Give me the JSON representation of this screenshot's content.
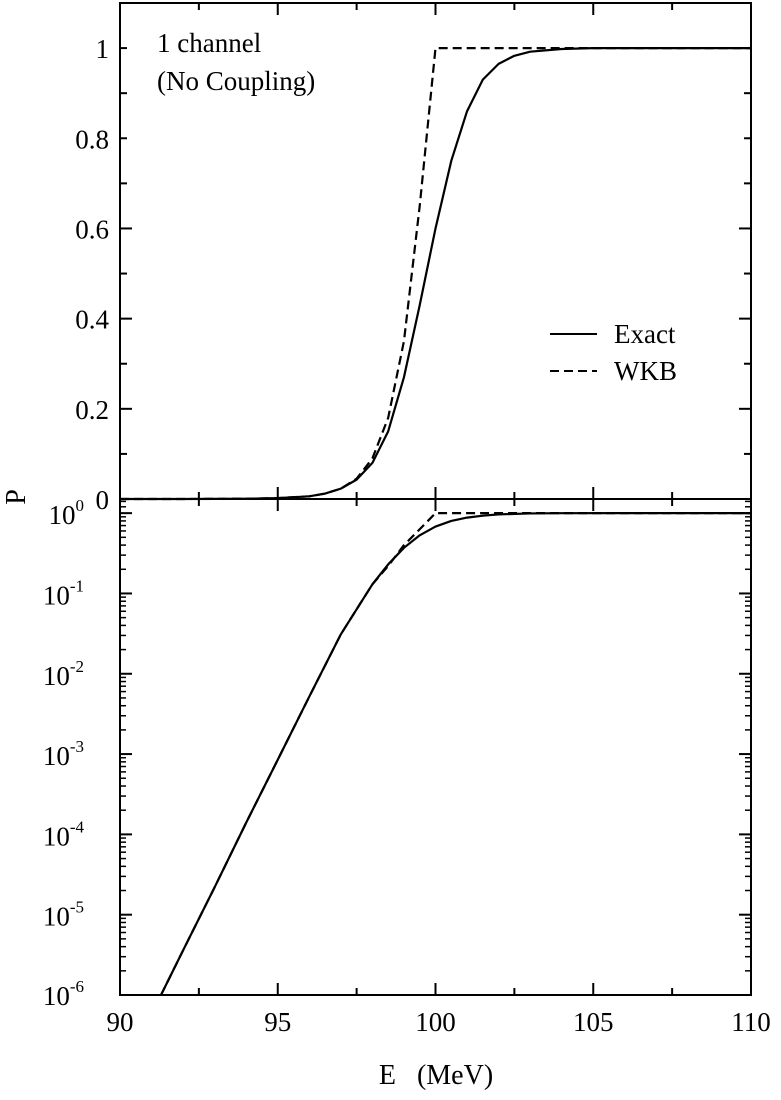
{
  "chart_data": [
    {
      "type": "line",
      "panel": "top",
      "scale": "linear",
      "annotation": [
        "1 channel",
        "(No Coupling)"
      ],
      "xlim": [
        90,
        110
      ],
      "ylim": [
        0,
        1.1
      ],
      "yticks": [
        0,
        0.2,
        0.4,
        0.6,
        0.8,
        1
      ],
      "ytick_labels": [
        "0",
        "0.2",
        "0.4",
        "0.6",
        "0.8",
        "1"
      ],
      "legend": {
        "placement": "right-middle",
        "entries": [
          "Exact",
          "WKB"
        ]
      },
      "grid": false,
      "series": [
        {
          "name": "Exact",
          "style": "solid",
          "x": [
            90,
            92,
            94,
            95,
            96,
            96.5,
            97,
            97.5,
            98,
            98.5,
            99,
            99.5,
            100,
            100.5,
            101,
            101.5,
            102,
            102.5,
            103,
            104,
            105,
            106,
            108,
            110
          ],
          "y": [
            2e-06,
            4e-05,
            0.0006,
            0.002,
            0.006,
            0.012,
            0.023,
            0.043,
            0.08,
            0.15,
            0.27,
            0.43,
            0.6,
            0.75,
            0.86,
            0.93,
            0.965,
            0.983,
            0.992,
            0.998,
            1.0,
            1.0,
            1.0,
            1.0
          ]
        },
        {
          "name": "WKB",
          "style": "dashed",
          "x": [
            90,
            92,
            94,
            95,
            96,
            96.5,
            97,
            97.5,
            98,
            98.5,
            99,
            99.5,
            100,
            100.01,
            102,
            105,
            110
          ],
          "y": [
            2e-06,
            4e-05,
            0.0006,
            0.002,
            0.006,
            0.012,
            0.023,
            0.045,
            0.09,
            0.18,
            0.35,
            0.65,
            1.0,
            1.0,
            1.0,
            1.0,
            1.0
          ]
        }
      ]
    },
    {
      "type": "line",
      "panel": "bottom",
      "scale": "log",
      "xlabel": "E   (MeV)",
      "ylabel": "P",
      "xlim": [
        90,
        110
      ],
      "ylim": [
        1e-06,
        1.5
      ],
      "xtick_labels": [
        "90",
        "95",
        "100",
        "105",
        "110"
      ],
      "ytick_labels": [
        {
          "base": "10",
          "exp": "0"
        },
        {
          "base": "10",
          "exp": "-1"
        },
        {
          "base": "10",
          "exp": "-2"
        },
        {
          "base": "10",
          "exp": "-3"
        },
        {
          "base": "10",
          "exp": "-4"
        },
        {
          "base": "10",
          "exp": "-5"
        },
        {
          "base": "10",
          "exp": "-6"
        }
      ],
      "grid": false,
      "series": [
        {
          "name": "Exact",
          "style": "solid",
          "x": [
            91.3,
            92,
            93,
            94,
            95,
            96,
            97,
            98,
            98.5,
            99,
            99.5,
            100,
            100.5,
            101,
            101.5,
            102,
            103,
            104,
            106,
            110
          ],
          "y": [
            1e-06,
            3.6e-06,
            2.2e-05,
            0.00014,
            0.00085,
            0.0052,
            0.031,
            0.13,
            0.23,
            0.37,
            0.53,
            0.68,
            0.8,
            0.88,
            0.93,
            0.965,
            0.992,
            0.998,
            1.0,
            1.0
          ]
        },
        {
          "name": "WKB",
          "style": "dashed",
          "x": [
            91.3,
            92,
            93,
            94,
            95,
            96,
            97,
            98,
            98.5,
            99,
            99.5,
            100,
            110
          ],
          "y": [
            1e-06,
            3.6e-06,
            2.2e-05,
            0.00014,
            0.00085,
            0.0052,
            0.031,
            0.13,
            0.22,
            0.4,
            0.63,
            1.0,
            1.0
          ]
        }
      ]
    }
  ]
}
